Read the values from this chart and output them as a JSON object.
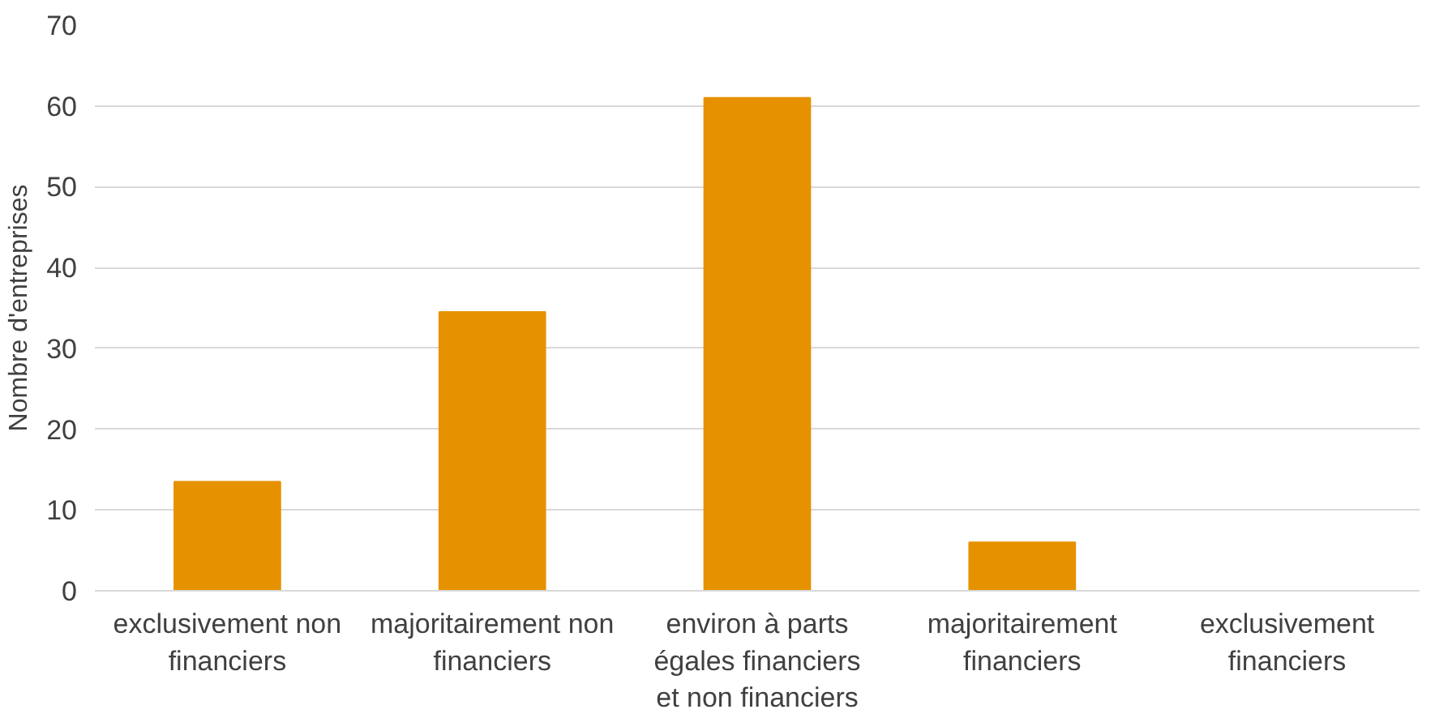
{
  "chart_data": {
    "type": "bar",
    "ylabel": "Nombre d'entreprises",
    "categories": [
      "exclusivement non financiers",
      "majoritairement non financiers",
      "environ à parts égales financiers et non financiers",
      "majoritairement financiers",
      "exclusivement financiers"
    ],
    "values": [
      13.5,
      34.5,
      61,
      6,
      0
    ],
    "color": "#e69100",
    "ylim": [
      0,
      70
    ],
    "yticks": [
      0,
      10,
      20,
      30,
      40,
      50,
      60,
      70
    ],
    "grid": "y"
  }
}
